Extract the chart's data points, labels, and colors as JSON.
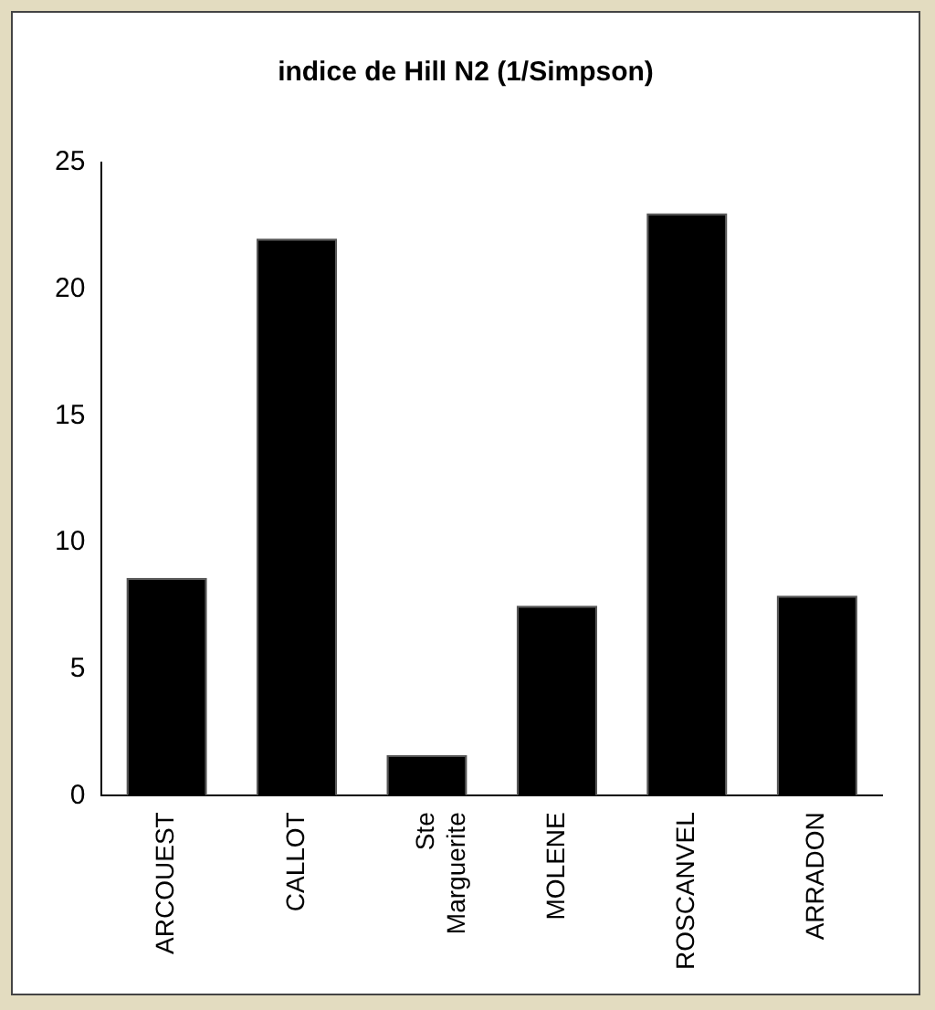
{
  "chart_data": {
    "type": "bar",
    "title": "indice de Hill N2 (1/Simpson)",
    "categories": [
      "ARCOUEST",
      "CALLOT",
      "Ste Marguerite",
      "MOLENE",
      "ROSCANVEL",
      "ARRADON"
    ],
    "values": [
      8.6,
      22.0,
      1.6,
      7.5,
      23.0,
      7.9
    ],
    "color": "#000000",
    "ylim": [
      0,
      25
    ],
    "yticks": [
      0,
      5,
      10,
      15,
      20,
      25
    ],
    "grid": false,
    "legend": false
  }
}
